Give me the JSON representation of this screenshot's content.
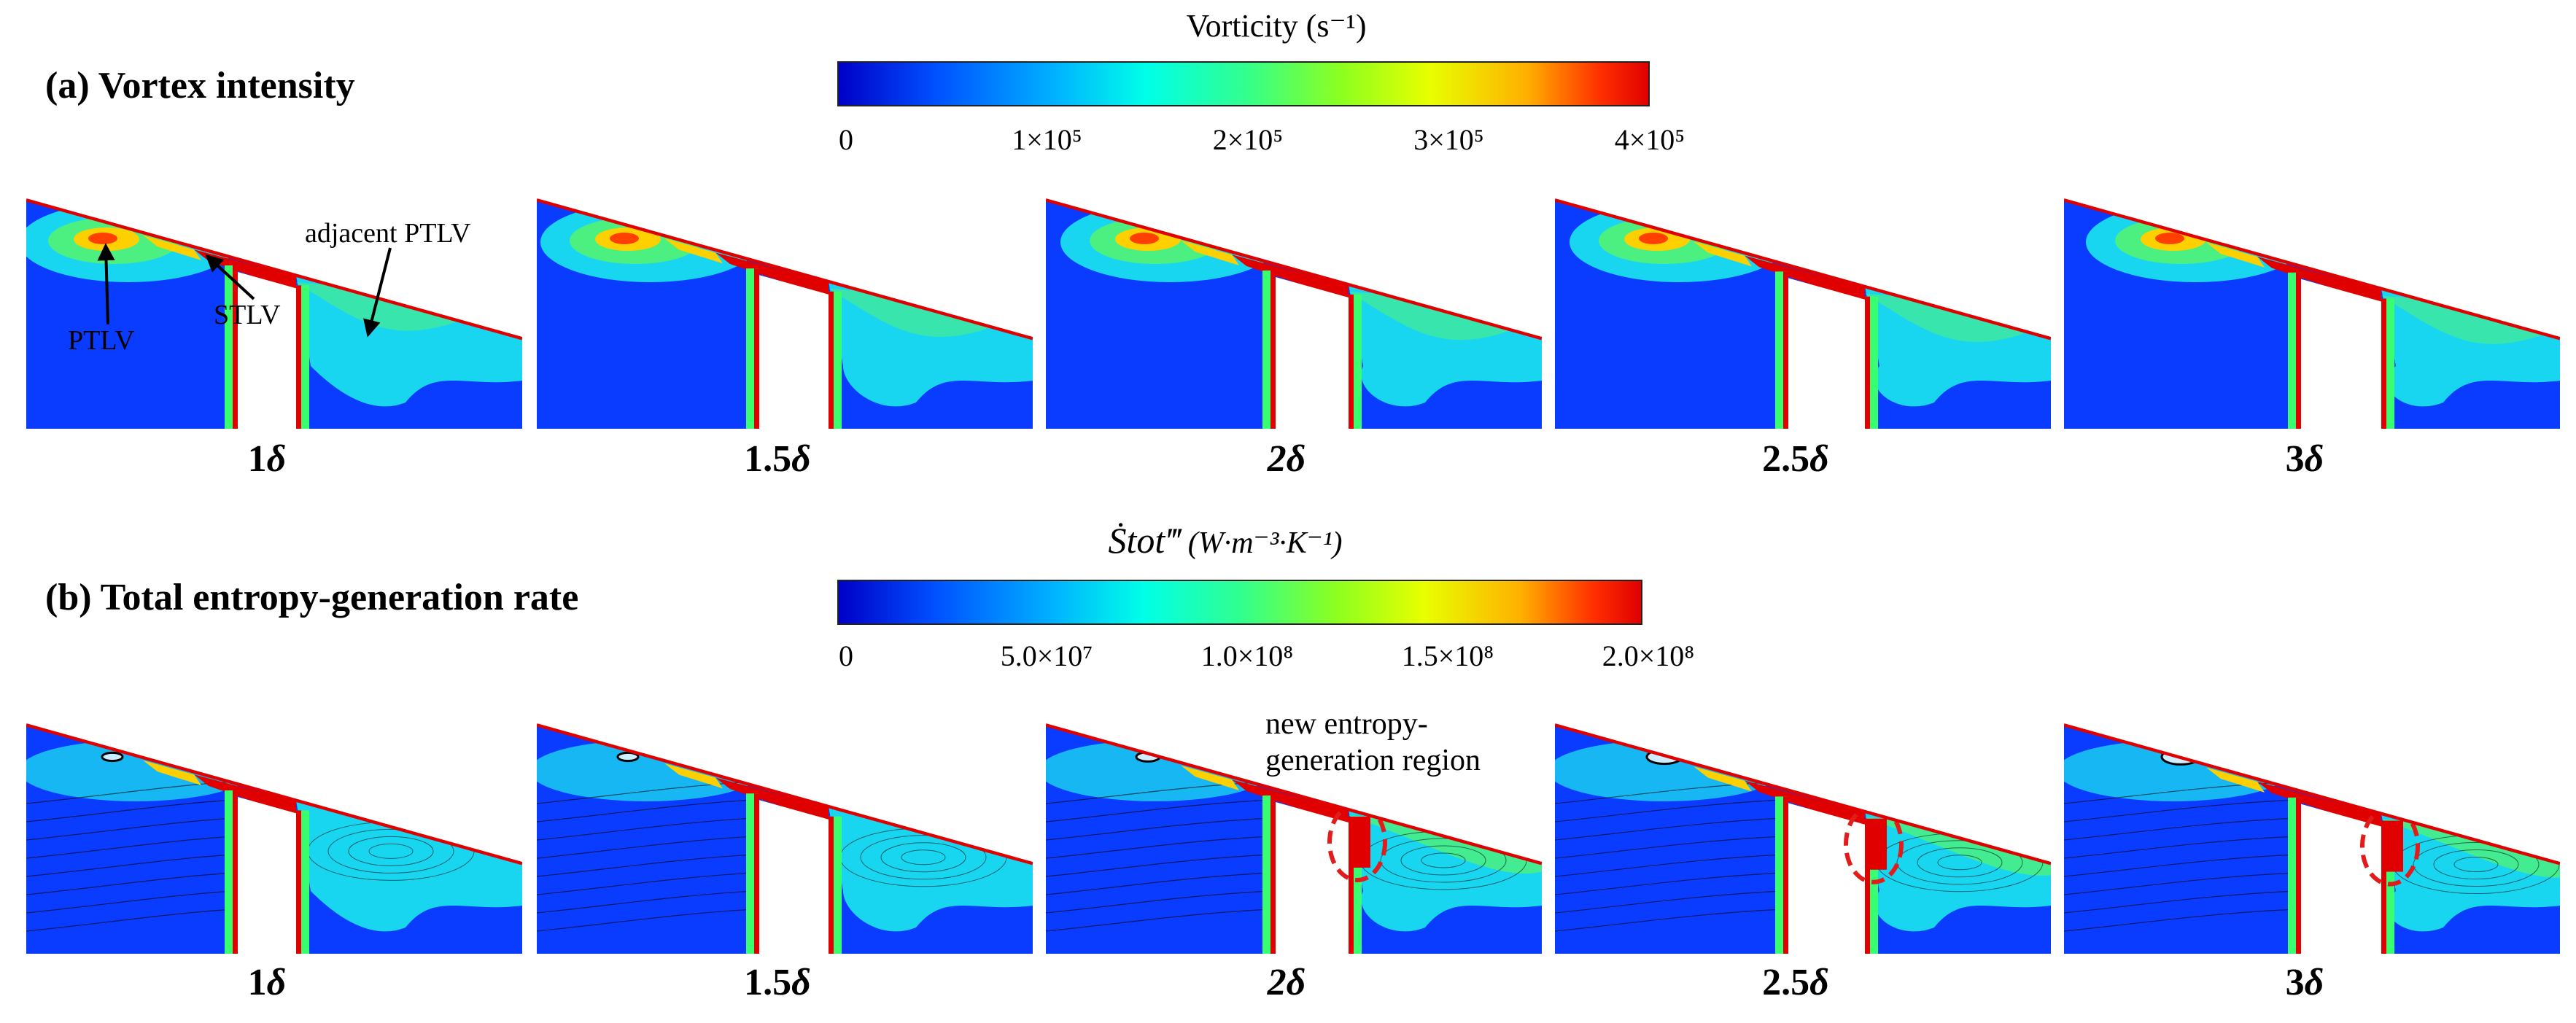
{
  "section_a": {
    "title": "(a) Vortex intensity",
    "colorbar": {
      "label": "Vorticity (s⁻¹)",
      "ticks": [
        "0",
        "1×10⁵",
        "2×10⁵",
        "3×10⁵",
        "4×10⁵"
      ]
    },
    "panels": [
      "1δ",
      "1.5δ",
      "2δ",
      "2.5δ",
      "3δ"
    ],
    "annotations": {
      "ptlv": "PTLV",
      "stlv": "STLV",
      "adjacent": "adjacent PTLV"
    }
  },
  "section_b": {
    "title": "(b) Total entropy-generation rate",
    "colorbar": {
      "label_symbol": "Ṡtot‴",
      "label_units": "(W·m⁻³·K⁻¹)",
      "ticks": [
        "0",
        "5.0×10⁷",
        "1.0×10⁸",
        "1.5×10⁸",
        "2.0×10⁸"
      ]
    },
    "panels": [
      "1δ",
      "1.5δ",
      "2δ",
      "2.5δ",
      "3δ"
    ],
    "annotation_line1": "new entropy-",
    "annotation_line2": "generation region"
  },
  "colors": {
    "deep_blue": "#0a3cff",
    "cyan": "#19d6f0",
    "green": "#4cf080",
    "red": "#e00000",
    "highlight_ring": "#e21b1b"
  }
}
